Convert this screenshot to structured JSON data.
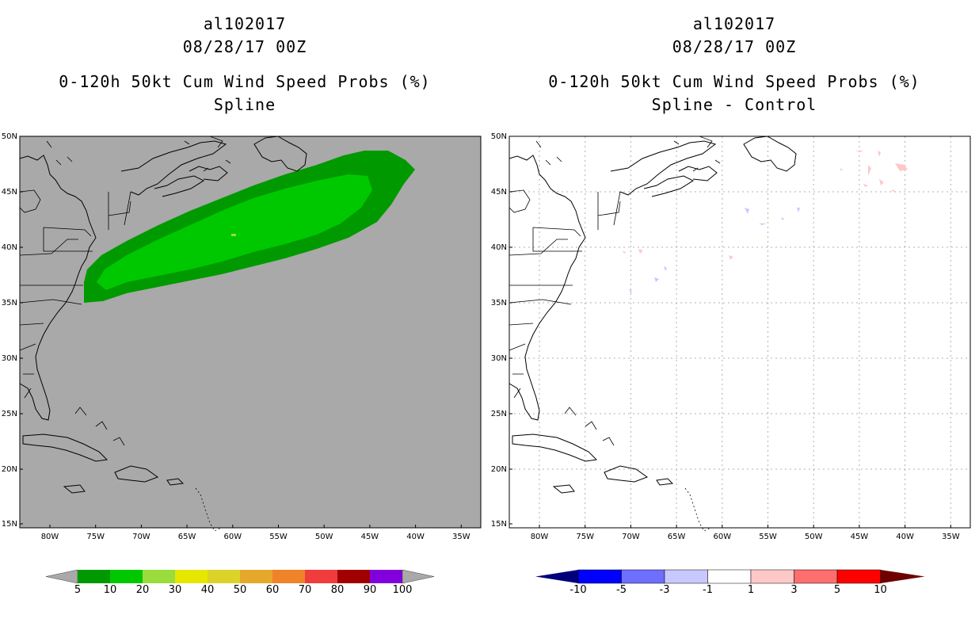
{
  "left_panel": {
    "storm_id": "al102017",
    "datetime": "08/28/17 00Z",
    "product": "0-120h 50kt Cum Wind Speed Probs (%)",
    "subtitle": "Spline",
    "background_color": "#a9a9a9",
    "colorbar": {
      "labels": [
        "5",
        "10",
        "20",
        "30",
        "40",
        "50",
        "60",
        "70",
        "80",
        "90",
        "100"
      ],
      "colors": [
        "#009a00",
        "#00c800",
        "#9adc3c",
        "#e6e600",
        "#dcd228",
        "#e6a82a",
        "#f0822a",
        "#f03c3c",
        "#a00000",
        "#8200dc"
      ],
      "end_color": "#a9a9a9"
    }
  },
  "right_panel": {
    "storm_id": "al102017",
    "datetime": "08/28/17 00Z",
    "product": "0-120h 50kt Cum Wind Speed Probs (%)",
    "subtitle": "Spline - Control",
    "background_color": "#ffffff",
    "colorbar": {
      "labels": [
        "-10",
        "-5",
        "-3",
        "-1",
        "1",
        "3",
        "5",
        "10"
      ],
      "colors": [
        "#0000ff",
        "#6e6eff",
        "#c8c8ff",
        "#ffffff",
        "#ffc8c8",
        "#ff6e6e",
        "#ff0000"
      ],
      "low_end_color": "#00007a",
      "high_end_color": "#6e0000"
    }
  },
  "axes": {
    "lat_labels": [
      "50N",
      "45N",
      "40N",
      "35N",
      "30N",
      "25N",
      "20N",
      "15N"
    ],
    "lon_labels": [
      "80W",
      "75W",
      "70W",
      "65W",
      "60W",
      "55W",
      "50W",
      "45W",
      "40W",
      "35W"
    ]
  },
  "prob_colors": {
    "outer": "#009a00",
    "inner": "#00c800",
    "spot": "#9adc3c"
  },
  "diff_colors": {
    "positive": "#ffc8c8",
    "negative": "#c8c8ff"
  }
}
